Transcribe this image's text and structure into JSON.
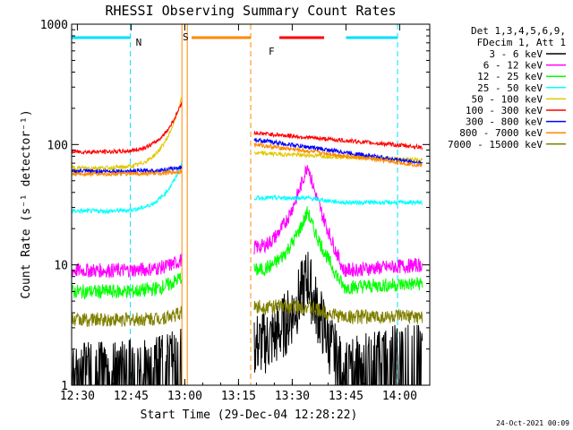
{
  "chart_data": {
    "type": "line",
    "title": "RHESSI Observing Summary Count Rates",
    "xlabel": "Start Time (29-Dec-04 12:28:22)",
    "ylabel": "Count Rate (s⁻¹ detector⁻¹)",
    "yscale": "log",
    "ylim": [
      1,
      1000
    ],
    "xlim_minutes": [
      0,
      100
    ],
    "x_ticks": [
      "12:30",
      "12:45",
      "13:00",
      "13:15",
      "13:30",
      "13:45",
      "14:00"
    ],
    "y_ticks": [
      "1",
      "10",
      "100",
      "1000"
    ],
    "x_tick_minutes": [
      1.6,
      16.6,
      31.6,
      46.6,
      61.6,
      76.6,
      91.6
    ],
    "legend_header": [
      "Det 1,3,4,5,6,9,",
      "FDecim 1, Att 1"
    ],
    "series": [
      {
        "name": "3 - 6 keV",
        "color": "#000000",
        "pre": [
          1.2,
          1.6
        ],
        "post_base": [
          2.2,
          2.8
        ],
        "peak": 8,
        "peak_min": 66,
        "tail": [
          1.2,
          1.8
        ]
      },
      {
        "name": "6 - 12 keV",
        "color": "#ff00ff",
        "pre": [
          9,
          11
        ],
        "post_base": [
          14,
          16
        ],
        "peak": 70,
        "peak_min": 66,
        "tail": [
          9,
          10
        ]
      },
      {
        "name": "12 - 25 keV",
        "color": "#00ff00",
        "pre": [
          6,
          8
        ],
        "post_base": [
          9,
          10
        ],
        "peak": 28,
        "peak_min": 66,
        "tail": [
          6.5,
          7
        ]
      },
      {
        "name": "25 - 50 keV",
        "color": "#00ffff",
        "pre": [
          28,
          70
        ],
        "post_base": [
          36,
          36
        ],
        "peak": 36,
        "peak_min": 66,
        "tail": [
          33,
          33
        ]
      },
      {
        "name": "50 - 100 keV",
        "color": "#e0c800",
        "pre": [
          64,
          250
        ],
        "post_base": [
          85,
          78
        ],
        "peak": 85,
        "peak_min": 66,
        "tail": [
          74,
          74
        ]
      },
      {
        "name": "100 - 300 keV",
        "color": "#ff0000",
        "pre": [
          87,
          230
        ],
        "post_base": [
          125,
          120
        ],
        "peak": 125,
        "peak_min": 66,
        "tail": [
          95,
          95
        ]
      },
      {
        "name": "300 - 800 keV",
        "color": "#0000ff",
        "pre": [
          60,
          65
        ],
        "post_base": [
          110,
          88
        ],
        "peak": 88,
        "peak_min": 66,
        "tail": [
          70,
          70
        ]
      },
      {
        "name": "800 - 7000 keV",
        "color": "#ff8800",
        "pre": [
          57,
          60
        ],
        "post_base": [
          100,
          82
        ],
        "peak": 82,
        "peak_min": 66,
        "tail": [
          67,
          67
        ]
      },
      {
        "name": "7000 - 15000 keV",
        "color": "#808000",
        "pre": [
          3.5,
          4
        ],
        "post_base": [
          4.5,
          4.5
        ],
        "peak": 4.5,
        "peak_min": 66,
        "tail": [
          3.7,
          3.7
        ]
      }
    ],
    "flags": [
      {
        "label": "N",
        "color": "#00e0ff",
        "bar_start": 0,
        "bar_end": 16.4,
        "line_min": 16.4,
        "dash": true
      },
      {
        "label": "S",
        "color": "#ff8800",
        "bar_start": 33.5,
        "bar_end": 50,
        "line_min": 50,
        "dash": true
      },
      {
        "label": "F",
        "color": "#ff0000",
        "bar_start": 58,
        "bar_end": 70.5,
        "line_min": null,
        "dash": false
      },
      {
        "label": "",
        "color": "#00e0ff",
        "bar_start": 76.6,
        "bar_end": 91,
        "line_min": 91,
        "dash": true
      }
    ],
    "gap_minutes": [
      30.8,
      51
    ],
    "timestamp": "24-Oct-2021 00:09"
  }
}
